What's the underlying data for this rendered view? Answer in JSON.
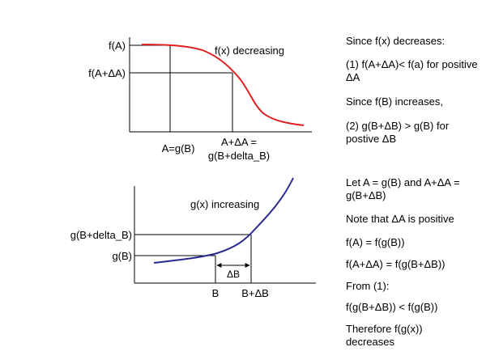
{
  "top_graph": {
    "y_label_top": "f(A)",
    "y_label_mid": "f(A+ΔA)",
    "curve_label": "f(x) decreasing",
    "x_label_left": "A=g(B)",
    "x_label_right_line1": "A+ΔA =",
    "x_label_right_line2": "g(B+delta_B)",
    "curve_color": "#e02020"
  },
  "bottom_graph": {
    "y_label_top": "g(B+delta_B)",
    "y_label_mid": "g(B)",
    "curve_label": "g(x) increasing",
    "delta_label": "ΔB",
    "x_label_left": "B",
    "x_label_right": "B+ΔB",
    "curve_color": "#2a2a90"
  },
  "notes_top": [
    "Since f(x) decreases:",
    "(1) f(A+ΔA)< f(a) for positive ΔA",
    "Since f(B) increases,",
    "(2) g(B+ΔB) > g(B) for postive ΔB"
  ],
  "notes_bottom": [
    "Let A = g(B) and A+ΔA = g(B+ΔB)",
    "Note that ΔA is positive",
    "f(A) = f(g(B))",
    "f(A+ΔA) = f(g(B+ΔB))",
    "From (1):",
    "f(g(B+ΔB)) < f(g(B))",
    "Therefore f(g(x)) decreases"
  ]
}
